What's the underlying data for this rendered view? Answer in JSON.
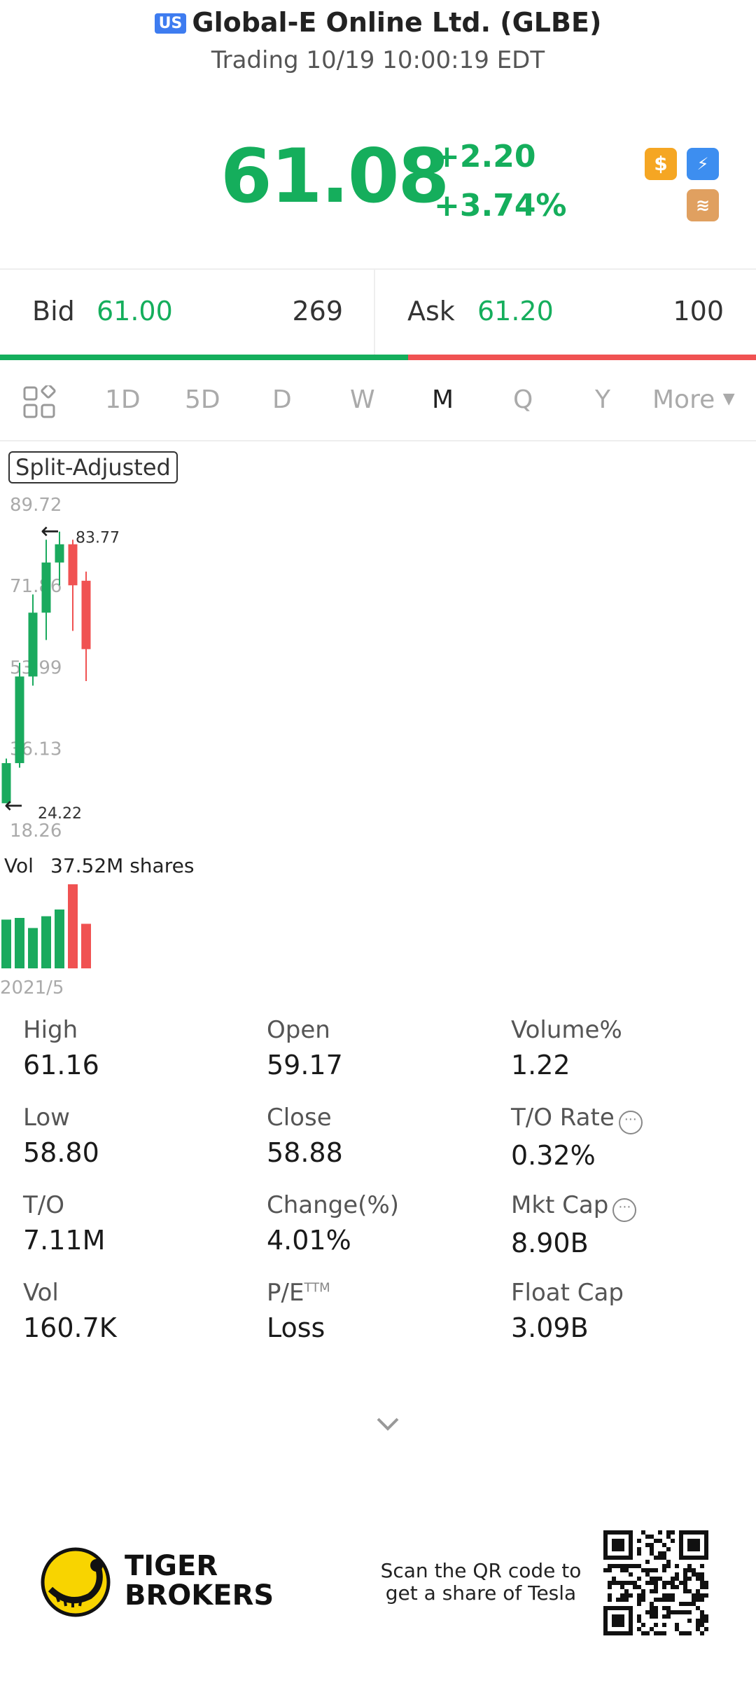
{
  "header": {
    "market_badge": "US",
    "title": "Global-E Online Ltd. (GLBE)",
    "status": "Trading 10/19 10:00:19 EDT"
  },
  "quote": {
    "price": "61.08",
    "change": "+2.20",
    "change_pct": "+3.74%",
    "icons": [
      "dollar-icon",
      "lightning-icon",
      "layers-icon"
    ]
  },
  "bid_ask": {
    "bid_label": "Bid",
    "bid_price": "61.00",
    "bid_size": "269",
    "ask_label": "Ask",
    "ask_price": "61.20",
    "ask_size": "100",
    "bid_ratio": 0.54
  },
  "tabs": {
    "items": [
      "1D",
      "5D",
      "D",
      "W",
      "M",
      "Q",
      "Y"
    ],
    "active": "M",
    "more": "More"
  },
  "chart": {
    "badge": "Split-Adjusted",
    "y_ticks": [
      "89.72",
      "71.86",
      "53.99",
      "36.13",
      "18.26"
    ],
    "max_label": "83.77",
    "min_label": "24.22",
    "vol_label": "Vol",
    "vol_value": "37.52M shares",
    "x_label": "2021/5"
  },
  "chart_data": {
    "type": "candlestick",
    "ylim": [
      18.26,
      89.72
    ],
    "candles": [
      {
        "open": 24.2,
        "close": 33.0,
        "high": 34.0,
        "low": 24.22
      },
      {
        "open": 33.0,
        "close": 52.0,
        "high": 55.0,
        "low": 32.0
      },
      {
        "open": 52.0,
        "close": 66.0,
        "high": 70.0,
        "low": 50.0
      },
      {
        "open": 66.0,
        "close": 77.0,
        "high": 82.0,
        "low": 60.0
      },
      {
        "open": 77.0,
        "close": 81.0,
        "high": 83.77,
        "low": 72.0
      },
      {
        "open": 81.0,
        "close": 72.0,
        "high": 82.0,
        "low": 62.0
      },
      {
        "open": 73.0,
        "close": 58.0,
        "high": 75.0,
        "low": 51.0
      }
    ],
    "volumes": [
      58,
      60,
      48,
      62,
      70,
      100,
      53
    ],
    "up_color": "#1aaa5e",
    "down_color": "#f05252"
  },
  "stats": [
    {
      "label": "High",
      "value": "61.16"
    },
    {
      "label": "Open",
      "value": "59.17"
    },
    {
      "label": "Volume%",
      "value": "1.22"
    },
    {
      "label": "Low",
      "value": "58.80"
    },
    {
      "label": "Close",
      "value": "58.88"
    },
    {
      "label": "T/O Rate",
      "value": "0.32%"
    },
    {
      "label": "T/O",
      "value": "7.11M"
    },
    {
      "label": "Change(%)",
      "value": "4.01%"
    },
    {
      "label": "Mkt Cap",
      "value": "8.90B"
    },
    {
      "label": "Vol",
      "value": "160.7K"
    },
    {
      "label": "P/E",
      "value": "Loss",
      "sup": "TTM"
    },
    {
      "label": "Float Cap",
      "value": "3.09B"
    }
  ],
  "footer": {
    "brand_line1": "TIGER",
    "brand_line2": "BROKERS",
    "scan_line1": "Scan the QR code to",
    "scan_line2": "get a share of Tesla"
  },
  "colors": {
    "up": "#15ae5c",
    "down": "#f05252",
    "accent_blue": "#3e7cf0"
  }
}
